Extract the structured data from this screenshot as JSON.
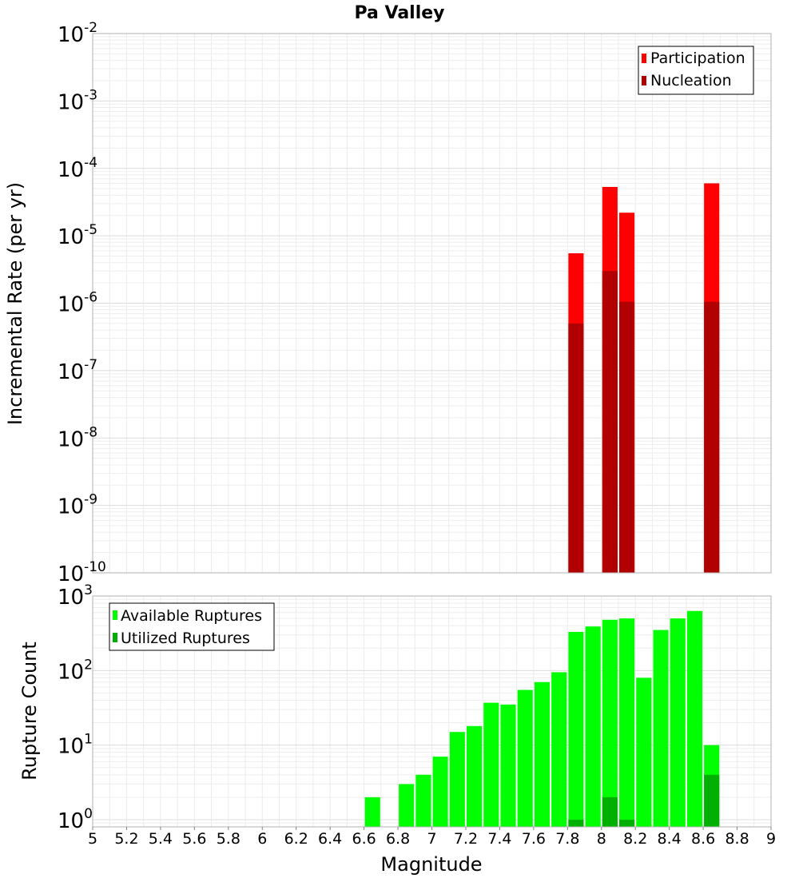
{
  "chart_data": [
    {
      "type": "bar",
      "title": "Pa Valley",
      "xlabel": "Magnitude",
      "ylabel": "Incremental Rate (per yr)",
      "y_scale": "log",
      "xlim": [
        5,
        9
      ],
      "ylim": [
        1e-10,
        0.01
      ],
      "y_ticks": [
        {
          "base": "10",
          "exp": "-10"
        },
        {
          "base": "10",
          "exp": "-9"
        },
        {
          "base": "10",
          "exp": "-8"
        },
        {
          "base": "10",
          "exp": "-7"
        },
        {
          "base": "10",
          "exp": "-6"
        },
        {
          "base": "10",
          "exp": "-5"
        },
        {
          "base": "10",
          "exp": "-4"
        },
        {
          "base": "10",
          "exp": "-3"
        },
        {
          "base": "10",
          "exp": "-2"
        }
      ],
      "legend_position": "top-right",
      "bar_width": 0.09,
      "series": [
        {
          "name": "Participation",
          "color": "#ff0000",
          "points": [
            {
              "x": 7.85,
              "y": 5.5e-06
            },
            {
              "x": 8.05,
              "y": 5.3e-05
            },
            {
              "x": 8.15,
              "y": 2.2e-05
            },
            {
              "x": 8.65,
              "y": 6e-05
            }
          ]
        },
        {
          "name": "Nucleation",
          "color": "#b00000",
          "points": [
            {
              "x": 7.85,
              "y": 5e-07
            },
            {
              "x": 8.05,
              "y": 3e-06
            },
            {
              "x": 8.15,
              "y": 1.05e-06
            },
            {
              "x": 8.65,
              "y": 1.05e-06
            }
          ]
        }
      ]
    },
    {
      "type": "bar",
      "xlabel": "Magnitude",
      "ylabel": "Rupture Count",
      "y_scale": "log",
      "xlim": [
        5,
        9
      ],
      "ylim": [
        0.8,
        1000
      ],
      "y_ticks": [
        {
          "base": "10",
          "exp": "0"
        },
        {
          "base": "10",
          "exp": "1"
        },
        {
          "base": "10",
          "exp": "2"
        },
        {
          "base": "10",
          "exp": "3"
        }
      ],
      "x_tick_labels": [
        "5",
        "5.2",
        "5.4",
        "5.6",
        "5.8",
        "6",
        "6.2",
        "6.4",
        "6.6",
        "6.8",
        "7",
        "7.2",
        "7.4",
        "7.6",
        "7.8",
        "8",
        "8.2",
        "8.4",
        "8.6",
        "8.8",
        "9"
      ],
      "legend_position": "top-left",
      "bar_width": 0.09,
      "series": [
        {
          "name": "Available Ruptures",
          "color": "#00ff00",
          "points": [
            {
              "x": 6.65,
              "y": 2
            },
            {
              "x": 6.85,
              "y": 3
            },
            {
              "x": 6.95,
              "y": 4
            },
            {
              "x": 7.05,
              "y": 7
            },
            {
              "x": 7.15,
              "y": 15
            },
            {
              "x": 7.25,
              "y": 18
            },
            {
              "x": 7.35,
              "y": 37
            },
            {
              "x": 7.45,
              "y": 35
            },
            {
              "x": 7.55,
              "y": 55
            },
            {
              "x": 7.65,
              "y": 70
            },
            {
              "x": 7.75,
              "y": 95
            },
            {
              "x": 7.85,
              "y": 330
            },
            {
              "x": 7.95,
              "y": 390
            },
            {
              "x": 8.05,
              "y": 480
            },
            {
              "x": 8.15,
              "y": 500
            },
            {
              "x": 8.25,
              "y": 80
            },
            {
              "x": 8.35,
              "y": 350
            },
            {
              "x": 8.45,
              "y": 500
            },
            {
              "x": 8.55,
              "y": 630
            },
            {
              "x": 8.65,
              "y": 10
            }
          ]
        },
        {
          "name": "Utilized Ruptures",
          "color": "#00b000",
          "points": [
            {
              "x": 7.85,
              "y": 1
            },
            {
              "x": 8.05,
              "y": 2
            },
            {
              "x": 8.15,
              "y": 1
            },
            {
              "x": 8.65,
              "y": 4
            }
          ]
        }
      ]
    }
  ]
}
